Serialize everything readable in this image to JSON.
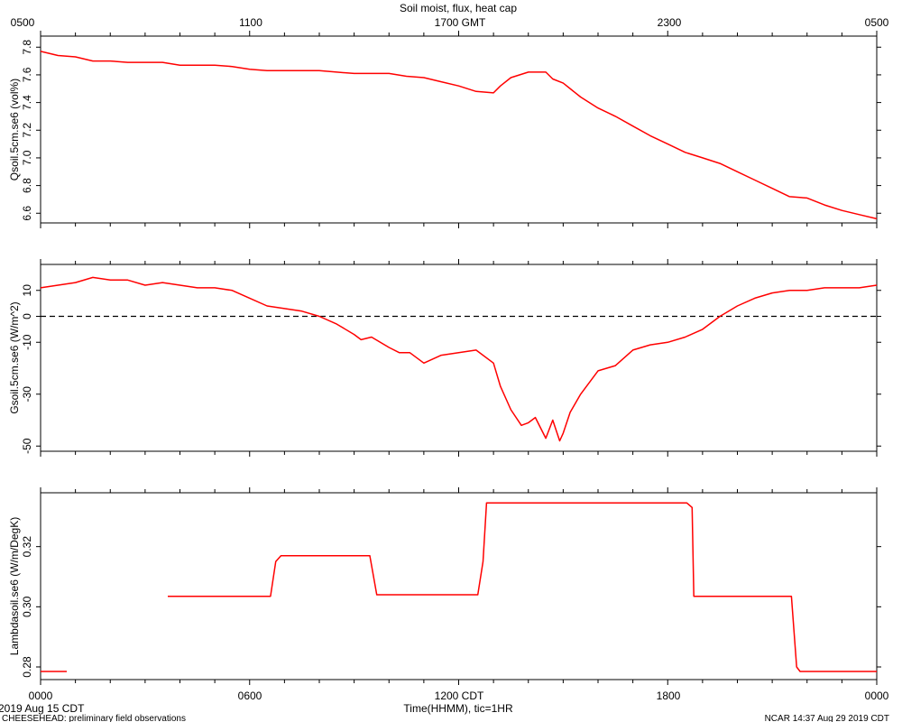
{
  "header": {
    "title": "Soil moist, flux, heat cap",
    "top_axis_ticks": [
      "0500",
      "1100",
      "1700 GMT",
      "2300",
      "0500"
    ]
  },
  "footer": {
    "date": "2019 Aug 15 CDT",
    "project": "CHEESEHEAD: preliminary field observations",
    "stamp": "NCAR 14:37 Aug 29 2019 CDT"
  },
  "chart_data": [
    {
      "type": "line",
      "ylabel": "Qsoil.5cm.se6 (vol%)",
      "ylim": [
        6.53,
        7.88
      ],
      "yticks": [
        6.6,
        6.8,
        7.0,
        7.2,
        7.4,
        7.6,
        7.8
      ],
      "ytick_labels": [
        "6.6",
        "6.8",
        "7.0",
        "7.2",
        "7.4",
        "7.6",
        "7.8"
      ],
      "series": [
        {
          "color": "#ff0000",
          "x": [
            0,
            0.5,
            1,
            1.5,
            2,
            2.5,
            3,
            3.5,
            4,
            4.5,
            5,
            5.5,
            6,
            6.5,
            7,
            7.5,
            8,
            8.5,
            9,
            9.5,
            10,
            10.5,
            11,
            11.5,
            12,
            12.5,
            13,
            13.2,
            13.5,
            14,
            14.2,
            14.5,
            14.7,
            15,
            15.5,
            16,
            16.5,
            17,
            17.5,
            18,
            18.5,
            19,
            19.5,
            20,
            20.5,
            21,
            21.5,
            22,
            22.5,
            23,
            23.5,
            24
          ],
          "y": [
            7.77,
            7.74,
            7.73,
            7.7,
            7.7,
            7.69,
            7.69,
            7.69,
            7.67,
            7.67,
            7.67,
            7.66,
            7.64,
            7.63,
            7.63,
            7.63,
            7.63,
            7.62,
            7.61,
            7.61,
            7.61,
            7.59,
            7.58,
            7.55,
            7.52,
            7.48,
            7.47,
            7.52,
            7.58,
            7.62,
            7.62,
            7.62,
            7.57,
            7.54,
            7.44,
            7.36,
            7.3,
            7.23,
            7.16,
            7.1,
            7.04,
            7.0,
            6.96,
            6.9,
            6.84,
            6.78,
            6.72,
            6.71,
            6.66,
            6.62,
            6.59,
            6.56
          ]
        }
      ]
    },
    {
      "type": "line",
      "ylabel": "Gsoil.5cm.se6 (W/m^2)",
      "ylim": [
        -52,
        20
      ],
      "yticks": [
        -50,
        -30,
        -10,
        0,
        10
      ],
      "ytick_labels": [
        "-50",
        "-30",
        "-10",
        "0",
        "10"
      ],
      "reference_line": {
        "y": 0,
        "style": "dashed"
      },
      "series": [
        {
          "color": "#ff0000",
          "x": [
            0,
            0.5,
            1,
            1.5,
            2,
            2.5,
            3,
            3.5,
            4,
            4.5,
            5,
            5.5,
            6,
            6.5,
            7,
            7.5,
            8,
            8.5,
            9,
            9.2,
            9.5,
            10,
            10.3,
            10.6,
            11,
            11.5,
            12,
            12.5,
            13,
            13.2,
            13.5,
            13.8,
            14,
            14.2,
            14.5,
            14.7,
            14.9,
            15,
            15.2,
            15.5,
            16,
            16.5,
            17,
            17.5,
            18,
            18.5,
            19,
            19.5,
            20,
            20.5,
            21,
            21.5,
            22,
            22.5,
            23,
            23.5,
            24
          ],
          "y": [
            11,
            12,
            13,
            15,
            14,
            14,
            12,
            13,
            12,
            11,
            11,
            10,
            7,
            4,
            3,
            2,
            0,
            -3,
            -7,
            -9,
            -8,
            -12,
            -14,
            -14,
            -18,
            -15,
            -14,
            -13,
            -18,
            -27,
            -36,
            -42,
            -41,
            -39,
            -47,
            -40,
            -48,
            -45,
            -37,
            -30,
            -21,
            -19,
            -13,
            -11,
            -10,
            -8,
            -5,
            0,
            4,
            7,
            9,
            10,
            10,
            11,
            11,
            11,
            12
          ]
        }
      ]
    },
    {
      "type": "line",
      "ylabel": "Lambdasoil.se6 (W/m/DegK)",
      "xlabel": "Time(HHMM), tic=1HR",
      "ylim": [
        0.2758,
        0.3379
      ],
      "yticks": [
        0.28,
        0.3,
        0.32
      ],
      "ytick_labels": [
        "0.28",
        "0.30",
        "0.32"
      ],
      "xtick_labels": [
        "0000",
        "0600",
        "1200 CDT",
        "1800",
        "0000"
      ],
      "segments": [
        {
          "x": [
            0,
            0.75
          ],
          "y": [
            0.2785,
            0.2785
          ]
        },
        {
          "x": [
            3.65,
            6.6,
            6.75,
            6.9,
            9.45,
            9.65,
            12.55,
            12.7,
            12.8,
            18.55,
            18.7,
            18.75,
            21.55,
            21.7,
            21.8,
            24
          ],
          "y": [
            0.3035,
            0.3035,
            0.315,
            0.317,
            0.317,
            0.304,
            0.304,
            0.315,
            0.3345,
            0.3345,
            0.333,
            0.3035,
            0.3035,
            0.28,
            0.2785,
            0.2785
          ]
        }
      ],
      "series": [
        {
          "color": "#ff0000"
        }
      ]
    }
  ]
}
